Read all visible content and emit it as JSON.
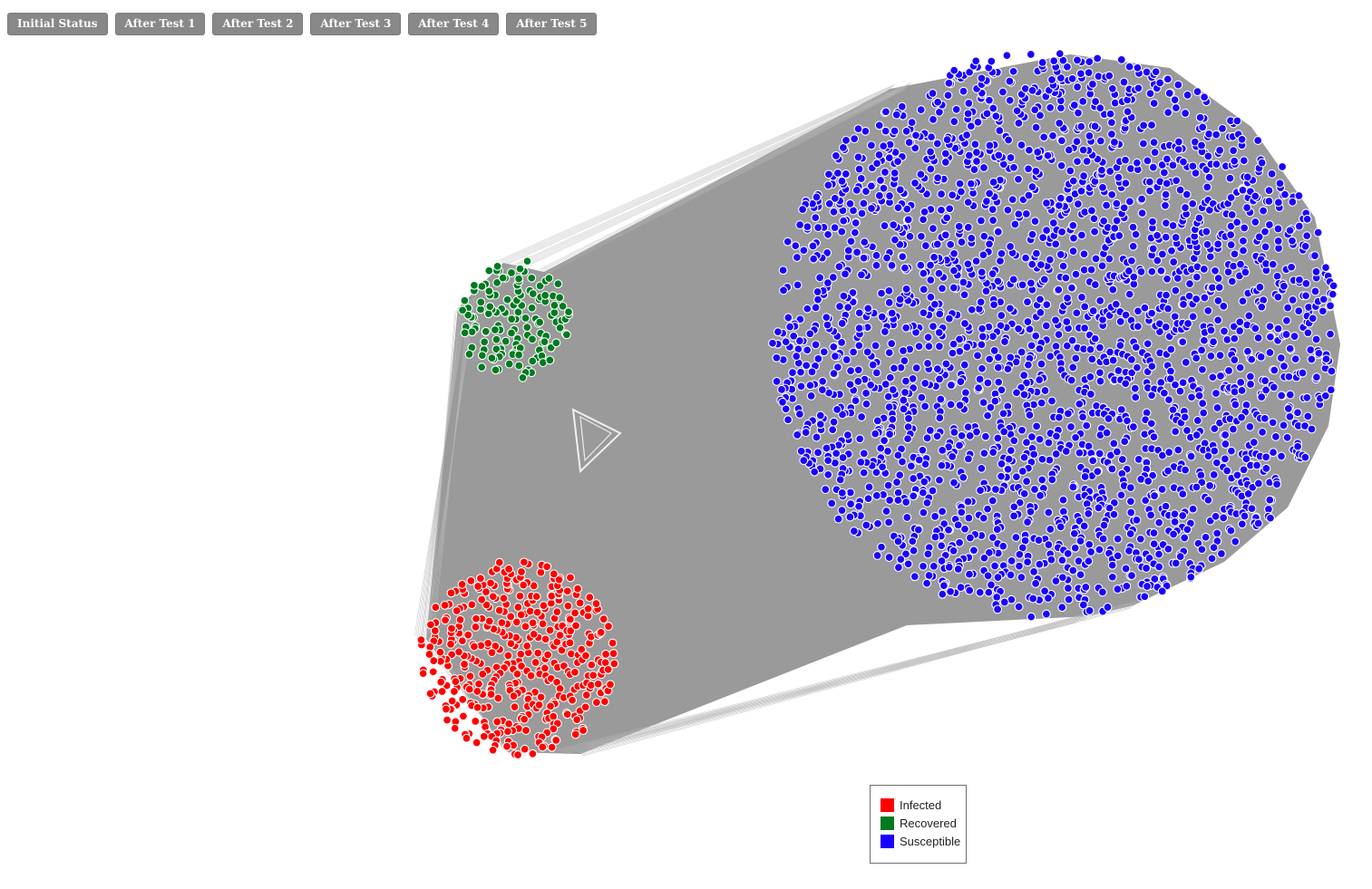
{
  "toolbar": {
    "buttons": [
      "Initial Status",
      "After Test 1",
      "After Test 2",
      "After Test 3",
      "After Test 4",
      "After Test 5"
    ]
  },
  "legend": {
    "items": [
      {
        "label": "Infected",
        "color": "#ff0000"
      },
      {
        "label": "Recovered",
        "color": "#007a1f"
      },
      {
        "label": "Susceptible",
        "color": "#1a00ff"
      }
    ]
  },
  "colors": {
    "edge": "#9a9a9a",
    "node_outline": "#ffffff"
  },
  "network": {
    "groups": [
      {
        "status": "Recovered",
        "color": "#007a1f",
        "approx_count": 130
      },
      {
        "status": "Infected",
        "color": "#ff0000",
        "approx_count": 400
      },
      {
        "status": "Susceptible",
        "color": "#1a00ff",
        "approx_count": 2400
      }
    ]
  }
}
